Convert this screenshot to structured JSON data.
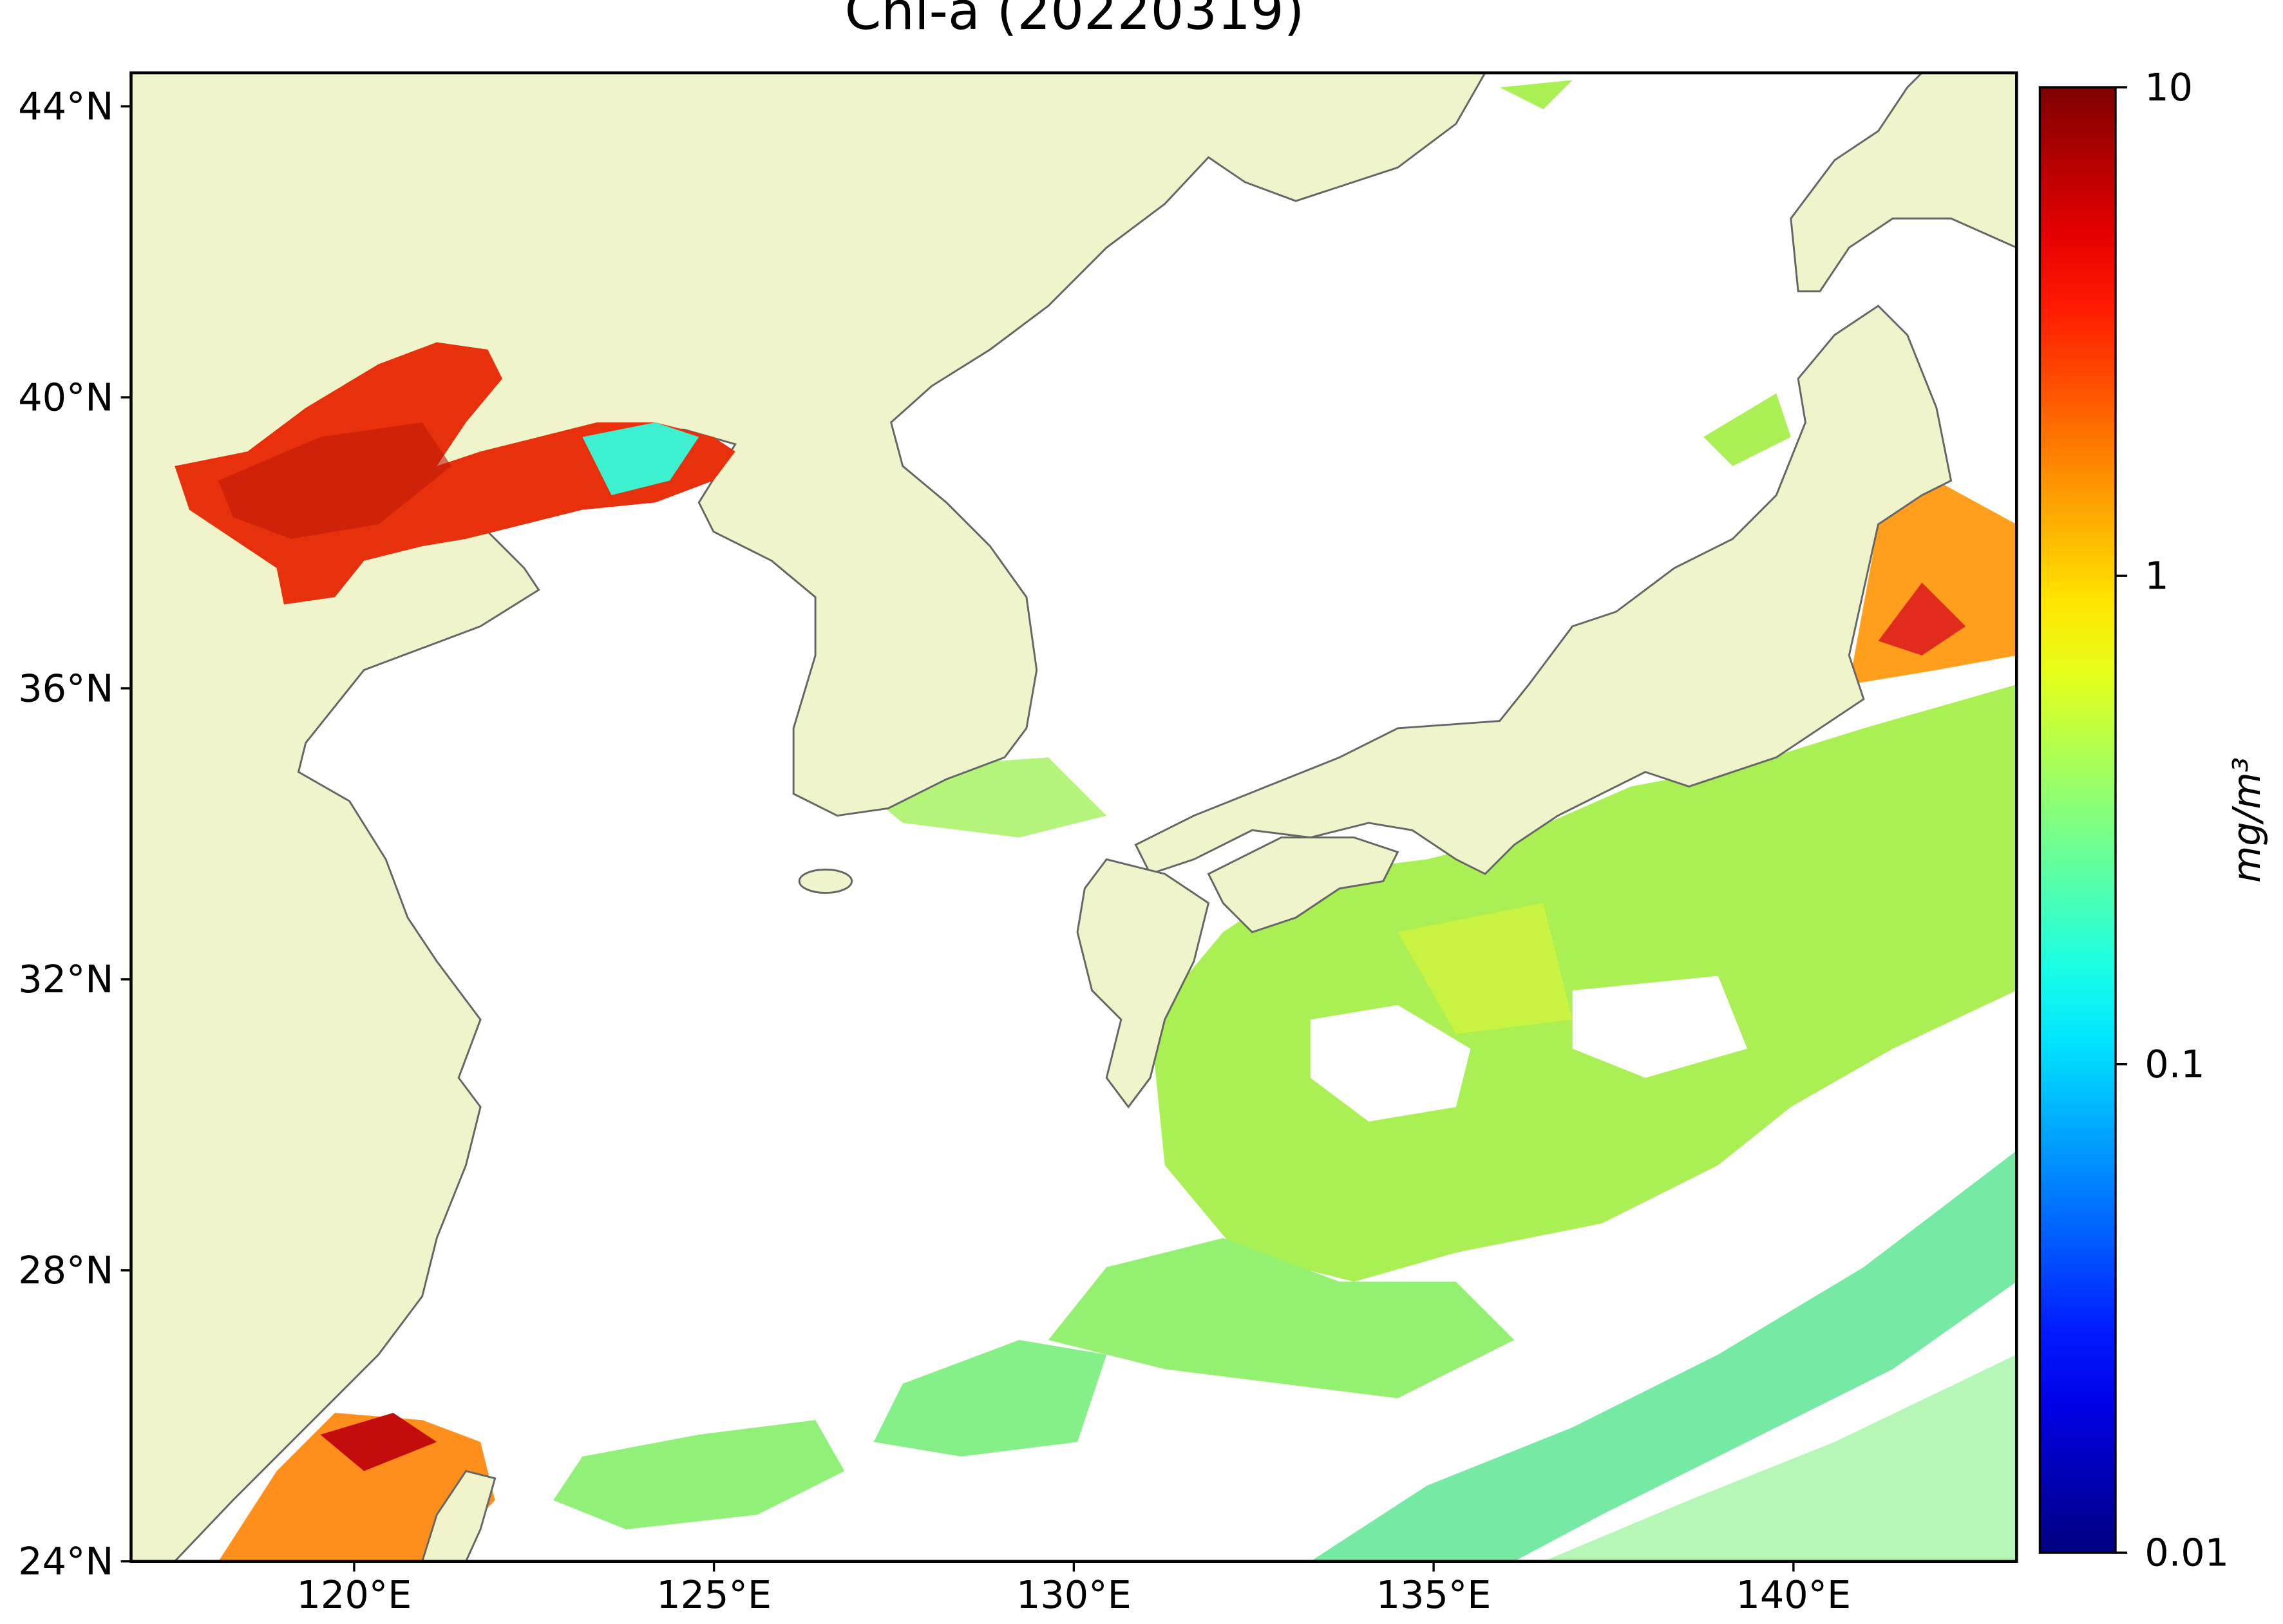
{
  "chart_data": {
    "type": "map",
    "title": "Chl-a (20220319)",
    "xlim": [
      116.9,
      143.1
    ],
    "ylim": [
      24.0,
      44.46
    ],
    "xticks": [
      {
        "value": 120,
        "label": "120°E"
      },
      {
        "value": 125,
        "label": "125°E"
      },
      {
        "value": 130,
        "label": "130°E"
      },
      {
        "value": 135,
        "label": "135°E"
      },
      {
        "value": 140,
        "label": "140°E"
      }
    ],
    "yticks": [
      {
        "value": 24,
        "label": "24°N"
      },
      {
        "value": 28,
        "label": "28°N"
      },
      {
        "value": 32,
        "label": "32°N"
      },
      {
        "value": 36,
        "label": "36°N"
      },
      {
        "value": 40,
        "label": "40°N"
      },
      {
        "value": 44,
        "label": "44°N"
      }
    ],
    "colorbar": {
      "label": "mg/m³",
      "lim": [
        0.01,
        10
      ],
      "ticks": [
        0.01,
        0.1,
        1,
        10
      ],
      "scale": "log",
      "colormap": "jet"
    }
  }
}
